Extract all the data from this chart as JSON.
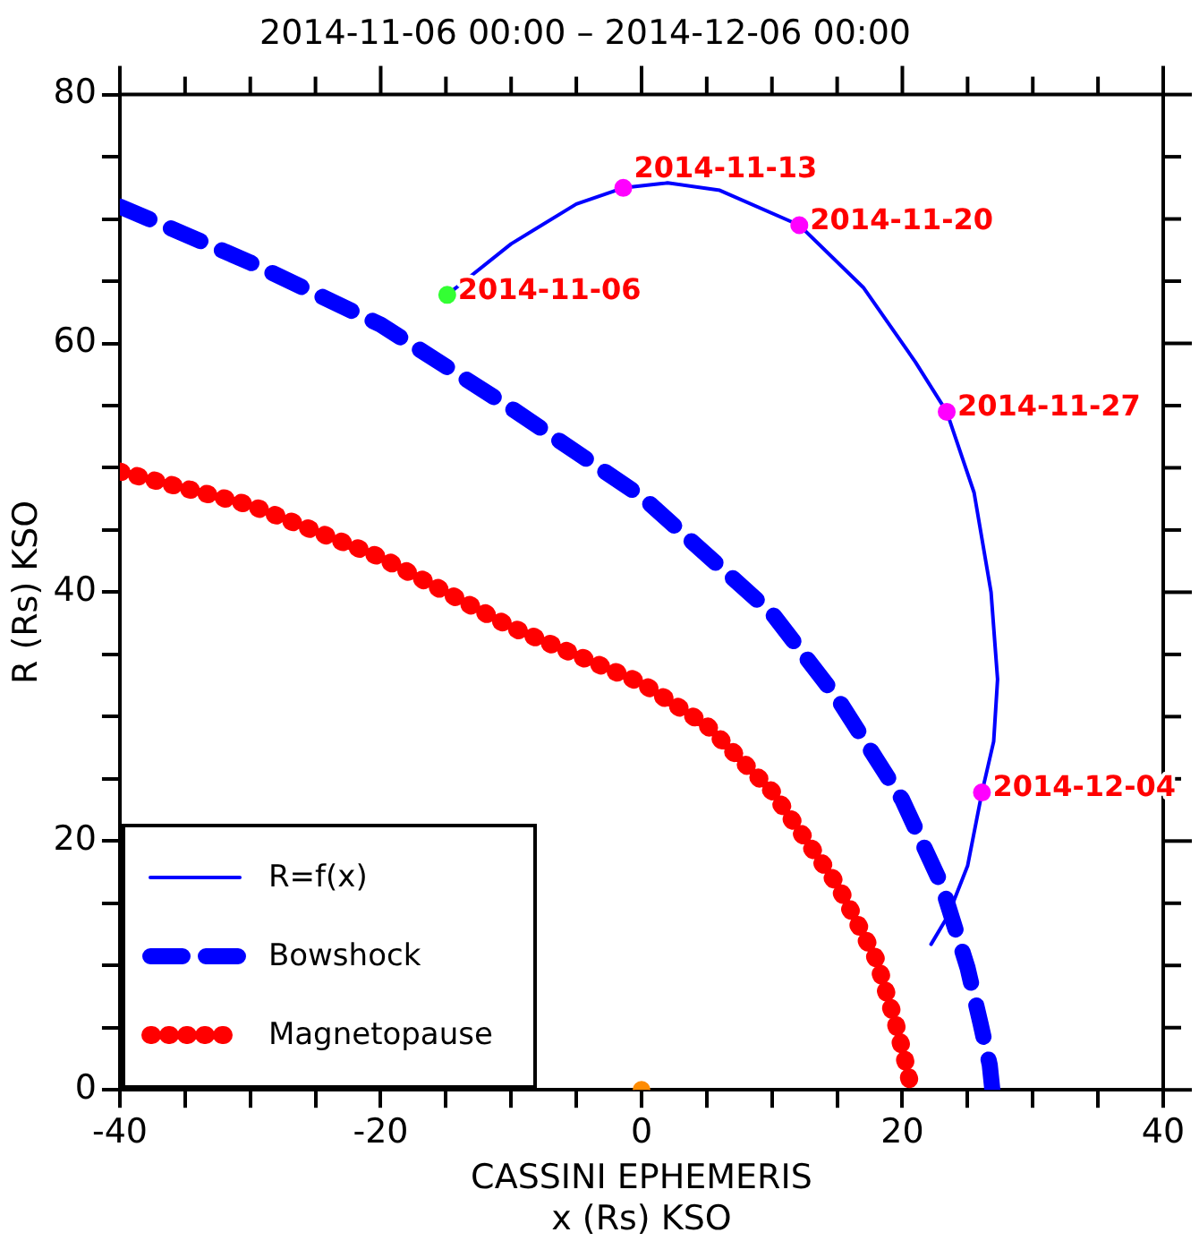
{
  "chart_data": {
    "type": "line",
    "title": "2014-11-06 00:00 – 2014-12-06 00:00",
    "xlabel": "CASSINI EPHEMERIS\nx (Rs) KSO",
    "ylabel": "R (Rs) KSO",
    "xlim": [
      -40,
      40
    ],
    "ylim": [
      0,
      80
    ],
    "xticks": [
      -40,
      {
        "value": -35,
        "label": null
      },
      {
        "value": -30,
        "label": null
      },
      {
        "value": -25,
        "label": null
      },
      -20,
      {
        "value": -15,
        "label": null
      },
      {
        "value": -10,
        "label": null
      },
      {
        "value": -5,
        "label": null
      },
      0,
      {
        "value": 5,
        "label": null
      },
      {
        "value": 10,
        "label": null
      },
      {
        "value": 15,
        "label": null
      },
      20,
      {
        "value": 25,
        "label": null
      },
      {
        "value": 30,
        "label": null
      },
      {
        "value": 35,
        "label": null
      },
      40
    ],
    "yticks": [
      0,
      {
        "value": 5,
        "label": null
      },
      {
        "value": 10,
        "label": null
      },
      {
        "value": 15,
        "label": null
      },
      20,
      {
        "value": 25,
        "label": null
      },
      {
        "value": 30,
        "label": null
      },
      {
        "value": 35,
        "label": null
      },
      40,
      {
        "value": 45,
        "label": null
      },
      {
        "value": 50,
        "label": null
      },
      {
        "value": 55,
        "label": null
      },
      60,
      {
        "value": 65,
        "label": null
      },
      {
        "value": 70,
        "label": null
      },
      {
        "value": 75,
        "label": null
      },
      80
    ],
    "grid": false,
    "legend": "bottom left",
    "marker": "none",
    "series": [
      {
        "name": "R=f(x)",
        "color": "#0000ff",
        "line_style": "solid",
        "x": [
          -14.9,
          -10,
          -5,
          -1.4,
          2,
          6,
          12.1,
          17,
          21,
          23.4,
          25.5,
          26.8,
          27.3,
          27,
          26.1,
          25,
          23.5,
          22.2
        ],
        "values": [
          63.9,
          68,
          71.2,
          72.5,
          72.9,
          72.3,
          69.5,
          64.5,
          58.5,
          54.5,
          48,
          40,
          33,
          28,
          23.9,
          18,
          14,
          11.7
        ]
      },
      {
        "name": "Bowshock",
        "color": "#0000ff",
        "line_style": "dashed",
        "x": [
          -40,
          -30,
          -20,
          -10,
          0,
          10,
          15,
          20,
          23,
          25,
          26,
          26.7,
          26.9
        ],
        "values": [
          71,
          66.5,
          61.5,
          54.8,
          47.7,
          38.3,
          31.5,
          23.3,
          16.5,
          9.8,
          5.3,
          2,
          0
        ]
      },
      {
        "name": "Magnetopause",
        "color": "#ff0000",
        "line_style": "dotted",
        "x": [
          -40,
          -30,
          -20,
          -10,
          0,
          5,
          10,
          15,
          18,
          19.5,
          20.3,
          20.7
        ],
        "values": [
          49.7,
          47,
          42.8,
          37.2,
          32.7,
          29.3,
          24,
          16.5,
          10.5,
          5.3,
          2,
          0
        ]
      },
      {
        "type": "scatter",
        "marker": "circle",
        "x": [
          -14.9
        ],
        "values": [
          63.9
        ],
        "colors": [
          "#33ff33"
        ]
      },
      {
        "type": "scatter",
        "marker": "circle",
        "x": [
          -1.4,
          12.1,
          23.4,
          26.1
        ],
        "values": [
          72.5,
          69.5,
          54.5,
          23.9
        ],
        "colors": [
          "#ff00ff",
          "#ff00ff",
          "#ff00ff",
          "#ff00ff"
        ]
      },
      {
        "type": "scatter",
        "marker": "circle",
        "x": [
          0
        ],
        "values": [
          0
        ],
        "colors": [
          "#ff8c00"
        ]
      }
    ],
    "annotations": [
      {
        "text": "2014-11-06",
        "x": -14.9,
        "y": 63.9
      },
      {
        "text": "2014-11-13",
        "x": -1.4,
        "y": 72.5
      },
      {
        "text": "2014-11-20",
        "x": 12.1,
        "y": 69.5
      },
      {
        "text": "2014-11-27",
        "x": 23.4,
        "y": 54.5
      },
      {
        "text": "2014-12-04",
        "x": 26.1,
        "y": 23.9
      }
    ]
  }
}
